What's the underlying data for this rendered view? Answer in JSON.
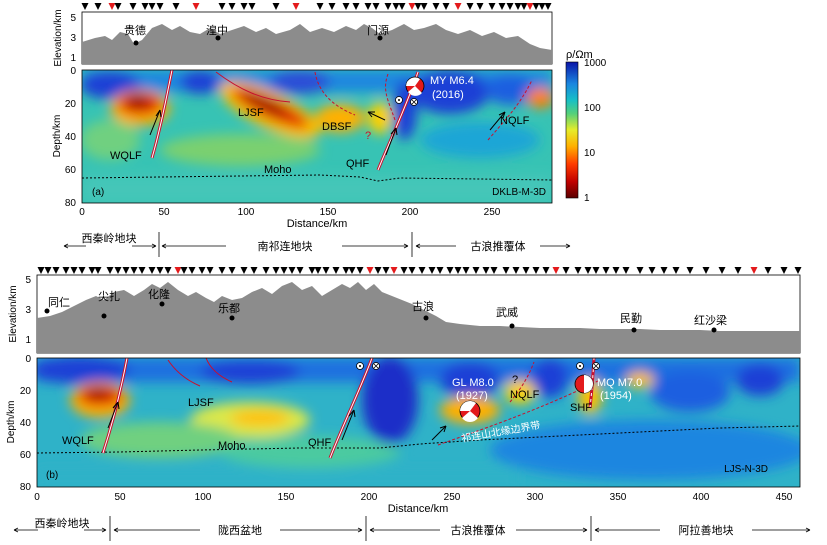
{
  "panel_a": {
    "label": "(a)",
    "model": "DKLB-M-3D",
    "elev_ylabel": "Elevation/km",
    "elev_ticks": [
      "5",
      "3",
      "1"
    ],
    "depth_ylabel": "Depth/km",
    "depth_ticks": [
      "0",
      "20",
      "40",
      "60",
      "80"
    ],
    "xlabel": "Distance/km",
    "x_ticks": [
      "0",
      "50",
      "100",
      "150",
      "200",
      "250"
    ],
    "towns": [
      "贵德",
      "湟中",
      "门源"
    ],
    "faults": [
      "WQLF",
      "LJSF",
      "DBSF",
      "QHF",
      "NQLF"
    ],
    "moho": "Moho",
    "question": "?",
    "eq_name": "MY M6.4",
    "eq_year": "(2016)",
    "blocks": [
      "西秦岭地块",
      "南祁连地块",
      "古浪推覆体"
    ]
  },
  "panel_b": {
    "label": "(b)",
    "model": "LJS-N-3D",
    "elev_ylabel": "Elevation/km",
    "elev_ticks": [
      "5",
      "3",
      "1"
    ],
    "depth_ylabel": "Depth/km",
    "depth_ticks": [
      "0",
      "20",
      "40",
      "60",
      "80"
    ],
    "xlabel": "Distance/km",
    "x_ticks": [
      "0",
      "50",
      "100",
      "150",
      "200",
      "250",
      "300",
      "350",
      "400",
      "450"
    ],
    "towns": [
      "同仁",
      "尖扎",
      "化隆",
      "乐都",
      "古浪",
      "武威",
      "民勤",
      "红沙梁"
    ],
    "faults": [
      "WQLF",
      "LJSF",
      "QHF",
      "NQLF",
      "SHF"
    ],
    "moho": "Moho",
    "question": "?",
    "eq1_name": "GL M8.0",
    "eq1_year": "(1927)",
    "eq2_name": "MQ M7.0",
    "eq2_year": "(1954)",
    "boundary_zone": "祁连山北缘边界带",
    "blocks": [
      "西秦岭地块",
      "陇西盆地",
      "古浪推覆体",
      "阿拉善地块"
    ]
  },
  "colorbar": {
    "title": "ρ/Ωm",
    "ticks": [
      "1000",
      "100",
      "10",
      "1"
    ]
  },
  "colors": {
    "conductive": "#8b0000",
    "resistive": "#1e3bd6",
    "background": "#37c3b4",
    "fault": "#c8102e",
    "station_black": "#000000",
    "station_red": "#e31a1c",
    "topography": "#8c8c8c"
  }
}
